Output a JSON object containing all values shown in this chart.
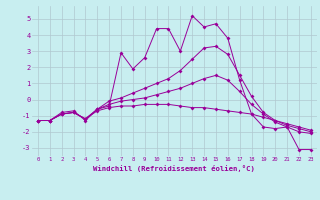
{
  "xlabel": "Windchill (Refroidissement éolien,°C)",
  "bg_color": "#c8eef0",
  "line_color": "#990099",
  "xlim": [
    -0.5,
    23.5
  ],
  "ylim": [
    -3.5,
    5.8
  ],
  "yticks": [
    -3,
    -2,
    -1,
    0,
    1,
    2,
    3,
    4,
    5
  ],
  "xticks": [
    0,
    1,
    2,
    3,
    4,
    5,
    6,
    7,
    8,
    9,
    10,
    11,
    12,
    13,
    14,
    15,
    16,
    17,
    18,
    19,
    20,
    21,
    22,
    23
  ],
  "xtick_labels": [
    "0",
    "1",
    "2",
    "3",
    "4",
    "5",
    "6",
    "7",
    "8",
    "9",
    "10",
    "11",
    "12",
    "13",
    "14",
    "15",
    "16",
    "17",
    "18",
    "19",
    "20",
    "21",
    "22",
    "23"
  ],
  "grid_color": "#b0c8d0",
  "series1_x": [
    0,
    1,
    2,
    3,
    4,
    5,
    6,
    7,
    8,
    9,
    10,
    11,
    12,
    13,
    14,
    15,
    16,
    17,
    18,
    19,
    20,
    21,
    22,
    23
  ],
  "series1_y": [
    -1.3,
    -1.3,
    -0.9,
    -0.8,
    -1.2,
    -0.6,
    -0.4,
    2.9,
    1.9,
    2.6,
    4.4,
    4.4,
    3.0,
    5.2,
    4.5,
    4.7,
    3.8,
    1.2,
    -0.9,
    -1.7,
    -1.8,
    -1.7,
    -3.1,
    -3.1
  ],
  "series2_x": [
    0,
    1,
    2,
    3,
    4,
    5,
    6,
    7,
    8,
    9,
    10,
    11,
    12,
    13,
    14,
    15,
    16,
    17,
    18,
    19,
    20,
    21,
    22,
    23
  ],
  "series2_y": [
    -1.3,
    -1.3,
    -0.8,
    -0.7,
    -1.3,
    -0.6,
    -0.1,
    0.1,
    0.4,
    0.7,
    1.0,
    1.3,
    1.8,
    2.5,
    3.2,
    3.3,
    2.8,
    1.5,
    0.2,
    -0.8,
    -1.3,
    -1.6,
    -1.8,
    -2.0
  ],
  "series3_x": [
    0,
    1,
    2,
    3,
    4,
    5,
    6,
    7,
    8,
    9,
    10,
    11,
    12,
    13,
    14,
    15,
    16,
    17,
    18,
    19,
    20,
    21,
    22,
    23
  ],
  "series3_y": [
    -1.3,
    -1.3,
    -0.9,
    -0.8,
    -1.2,
    -0.7,
    -0.5,
    -0.4,
    -0.4,
    -0.3,
    -0.3,
    -0.3,
    -0.4,
    -0.5,
    -0.5,
    -0.6,
    -0.7,
    -0.8,
    -0.9,
    -1.1,
    -1.3,
    -1.5,
    -1.7,
    -1.9
  ],
  "series4_x": [
    0,
    1,
    2,
    3,
    4,
    5,
    6,
    7,
    8,
    9,
    10,
    11,
    12,
    13,
    14,
    15,
    16,
    17,
    18,
    19,
    20,
    21,
    22,
    23
  ],
  "series4_y": [
    -1.3,
    -1.3,
    -0.9,
    -0.8,
    -1.2,
    -0.6,
    -0.3,
    -0.1,
    0.0,
    0.1,
    0.3,
    0.5,
    0.7,
    1.0,
    1.3,
    1.5,
    1.2,
    0.5,
    -0.3,
    -0.9,
    -1.4,
    -1.7,
    -2.0,
    -2.1
  ]
}
